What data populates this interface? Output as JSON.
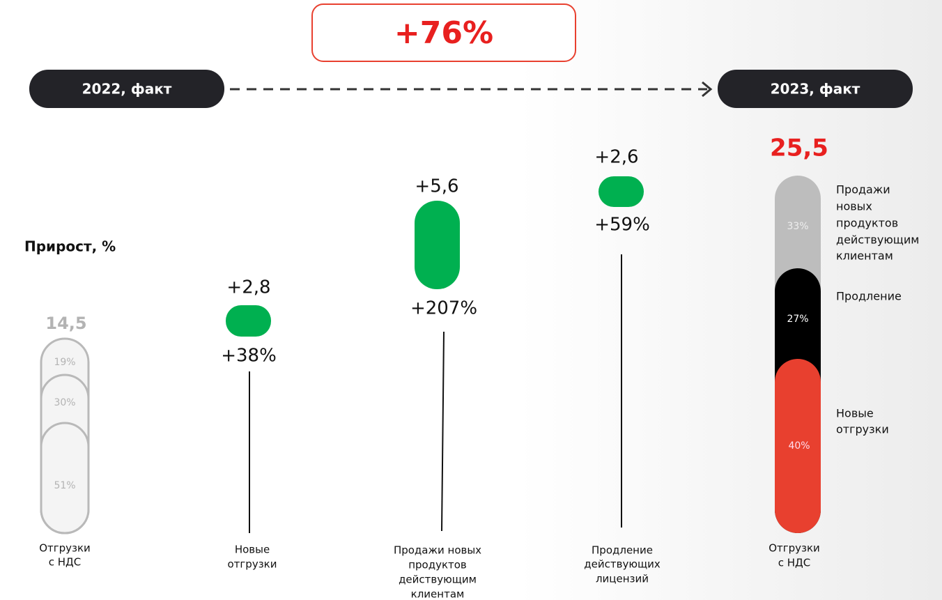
{
  "header": {
    "growth": "+76%",
    "from": "2022, факт",
    "to": "2023, факт"
  },
  "axis_note": "Прирост, %",
  "start": {
    "total": "14,5",
    "segments": [
      "19%",
      "30%",
      "51%"
    ],
    "label": [
      "Отгрузки",
      "с НДС"
    ]
  },
  "steps": [
    {
      "delta": "+2,8",
      "pct": "+38%",
      "label": [
        "Новые",
        "отгрузки"
      ]
    },
    {
      "delta": "+5,6",
      "pct": "+207%",
      "label": [
        "Продажи новых",
        "продуктов",
        "действующим",
        "клиентам"
      ]
    },
    {
      "delta": "+2,6",
      "pct": "+59%",
      "label": [
        "Продление",
        "действующих",
        "лицензий"
      ]
    }
  ],
  "end": {
    "total": "25,5",
    "segments": [
      "33%",
      "27%",
      "40%"
    ],
    "label": [
      "Отгрузки",
      "с НДС"
    ],
    "legend": [
      [
        "Продажи",
        "новых",
        "продуктов",
        "действующим",
        "клиентам"
      ],
      [
        "Продление"
      ],
      [
        "Новые",
        "отгрузки"
      ]
    ]
  }
}
